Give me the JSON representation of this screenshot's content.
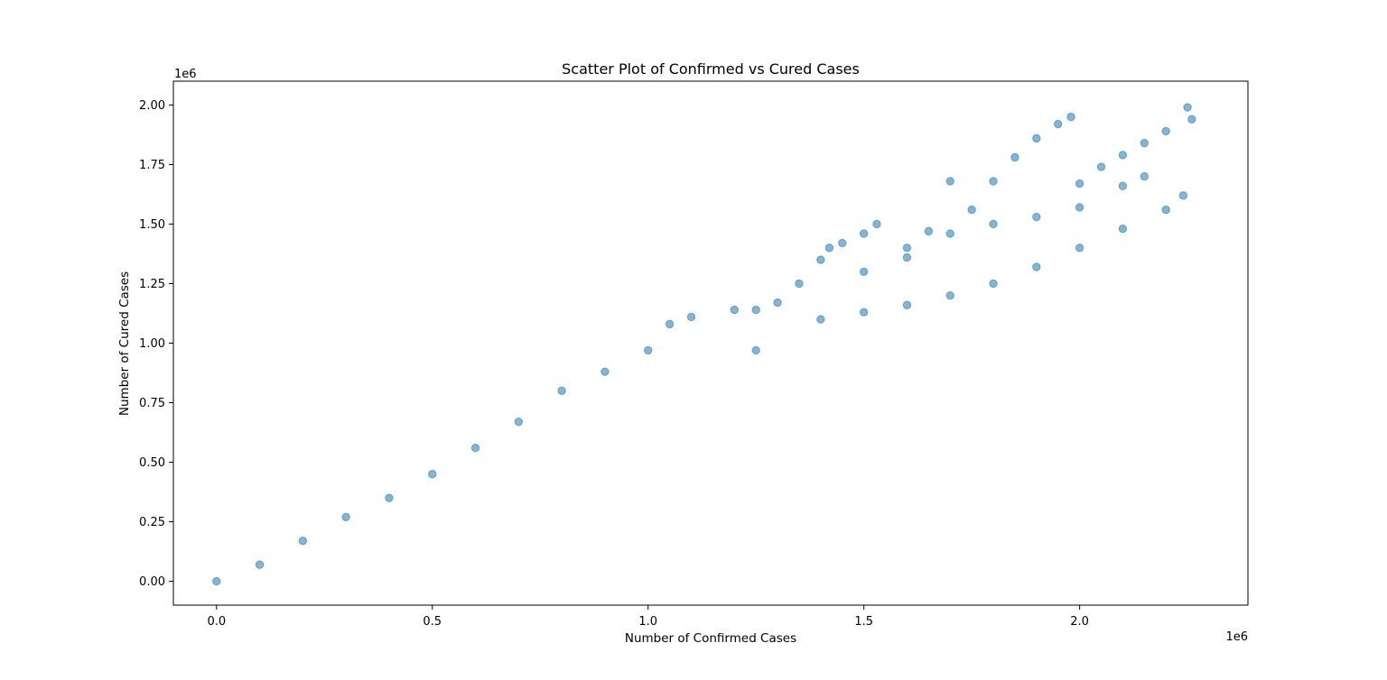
{
  "chart_data": {
    "type": "scatter",
    "title": "Scatter Plot of Confirmed vs Cured Cases",
    "xlabel": "Number of Confirmed Cases",
    "ylabel": "Number of Cured Cases",
    "x_offset_label": "1e6",
    "y_offset_label": "1e6",
    "xlim": [
      -0.1,
      2.39
    ],
    "ylim": [
      -0.1,
      2.1
    ],
    "xticks": [
      0.0,
      0.5,
      1.0,
      1.5,
      2.0
    ],
    "xtick_labels": [
      "0.0",
      "0.5",
      "1.0",
      "1.5",
      "2.0"
    ],
    "yticks": [
      0.0,
      0.25,
      0.5,
      0.75,
      1.0,
      1.25,
      1.5,
      1.75,
      2.0
    ],
    "ytick_labels": [
      "0.00",
      "0.25",
      "0.50",
      "0.75",
      "1.00",
      "1.25",
      "1.50",
      "1.75",
      "2.00"
    ],
    "grid": false,
    "marker_color": "#1f77b4",
    "marker_alpha": 0.55,
    "series": [
      {
        "points": [
          [
            0.0,
            0.0
          ],
          [
            0.1,
            0.07
          ],
          [
            0.2,
            0.17
          ],
          [
            0.3,
            0.27
          ],
          [
            0.4,
            0.35
          ],
          [
            0.5,
            0.45
          ],
          [
            0.6,
            0.56
          ],
          [
            0.7,
            0.67
          ],
          [
            0.8,
            0.8
          ],
          [
            0.9,
            0.88
          ],
          [
            1.0,
            0.97
          ],
          [
            1.05,
            1.08
          ],
          [
            1.1,
            1.11
          ],
          [
            1.2,
            1.14
          ],
          [
            1.25,
            1.14
          ],
          [
            1.3,
            1.17
          ],
          [
            1.35,
            1.25
          ],
          [
            1.4,
            1.35
          ],
          [
            1.42,
            1.4
          ],
          [
            1.45,
            1.42
          ],
          [
            1.5,
            1.46
          ],
          [
            1.53,
            1.5
          ],
          [
            1.6,
            1.36
          ],
          [
            1.65,
            1.47
          ],
          [
            1.7,
            1.68
          ],
          [
            1.75,
            1.56
          ],
          [
            1.8,
            1.68
          ],
          [
            1.85,
            1.78
          ],
          [
            1.9,
            1.86
          ],
          [
            1.95,
            1.92
          ],
          [
            1.98,
            1.95
          ],
          [
            2.0,
            1.67
          ],
          [
            2.05,
            1.74
          ],
          [
            2.1,
            1.79
          ],
          [
            2.15,
            1.84
          ],
          [
            2.2,
            1.89
          ],
          [
            2.25,
            1.99
          ],
          [
            2.26,
            1.94
          ],
          [
            1.5,
            1.3
          ],
          [
            1.6,
            1.4
          ],
          [
            1.7,
            1.46
          ],
          [
            1.8,
            1.5
          ],
          [
            1.9,
            1.53
          ],
          [
            2.0,
            1.57
          ],
          [
            2.1,
            1.66
          ],
          [
            2.15,
            1.7
          ],
          [
            1.25,
            0.97
          ],
          [
            1.4,
            1.1
          ],
          [
            1.5,
            1.13
          ],
          [
            1.6,
            1.16
          ],
          [
            1.7,
            1.2
          ],
          [
            1.8,
            1.25
          ],
          [
            1.9,
            1.32
          ],
          [
            2.0,
            1.4
          ],
          [
            2.1,
            1.48
          ],
          [
            2.2,
            1.56
          ],
          [
            2.24,
            1.62
          ]
        ]
      }
    ]
  }
}
